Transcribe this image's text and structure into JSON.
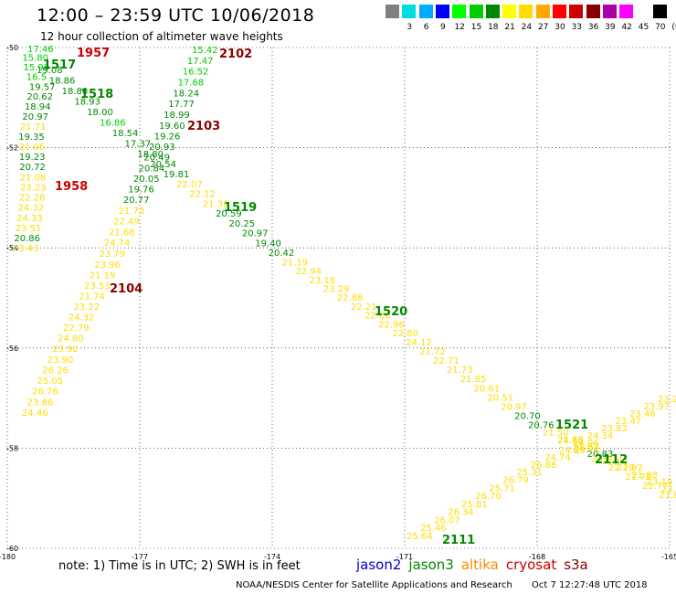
{
  "header": {
    "title": "12:00 – 23:59 UTC 10/06/2018",
    "subtitle": "12 hour collection of altimeter wave heights"
  },
  "legend": {
    "unit": "(ft)",
    "entries": [
      {
        "label": "",
        "color": "#808080"
      },
      {
        "label": "3",
        "color": "#00dddd"
      },
      {
        "label": "6",
        "color": "#00aaff"
      },
      {
        "label": "9",
        "color": "#0000ff"
      },
      {
        "label": "12",
        "color": "#00ff00"
      },
      {
        "label": "15",
        "color": "#00cc00"
      },
      {
        "label": "18",
        "color": "#008800"
      },
      {
        "label": "21",
        "color": "#ffff00"
      },
      {
        "label": "24",
        "color": "#ffdd00"
      },
      {
        "label": "27",
        "color": "#ffaa00"
      },
      {
        "label": "30",
        "color": "#ff0000"
      },
      {
        "label": "33",
        "color": "#cc0000"
      },
      {
        "label": "36",
        "color": "#880000"
      },
      {
        "label": "39",
        "color": "#aa00aa"
      },
      {
        "label": "42",
        "color": "#ff00ff"
      },
      {
        "label": "45",
        "color": "#ffffff"
      },
      {
        "label": "70",
        "color": "#000000"
      }
    ]
  },
  "map": {
    "lon_range": [
      -180,
      -165
    ],
    "lat_range": [
      -60,
      -50
    ],
    "lon_ticks": [
      "-180",
      "-177",
      "-174",
      "-171",
      "-168",
      "-165"
    ],
    "lat_ticks": [
      "-50",
      "-52",
      "-54",
      "-56",
      "-58",
      "-60"
    ]
  },
  "time_labels": [
    {
      "text": "1957",
      "color": "#cc0000"
    },
    {
      "text": "2102",
      "color": "#880000"
    },
    {
      "text": "1517",
      "color": "#008800"
    },
    {
      "text": "1518",
      "color": "#008800"
    },
    {
      "text": "2103",
      "color": "#880000"
    },
    {
      "text": "1958",
      "color": "#cc0000"
    },
    {
      "text": "1519",
      "color": "#008800"
    },
    {
      "text": "2104",
      "color": "#880000"
    },
    {
      "text": "1520",
      "color": "#008800"
    },
    {
      "text": "1521",
      "color": "#008800"
    },
    {
      "text": "2112",
      "color": "#008800"
    },
    {
      "text": "2111",
      "color": "#008800"
    }
  ],
  "tracks": [
    {
      "name": "track-a",
      "values": [
        {
          "v": "17.46",
          "c": "#00cc00"
        },
        {
          "v": "15.80",
          "c": "#00cc00"
        },
        {
          "v": "15.90",
          "c": "#00cc00"
        },
        {
          "v": "16.5",
          "c": "#00cc00"
        },
        {
          "v": "19.57",
          "c": "#008800"
        },
        {
          "v": "20.62",
          "c": "#008800"
        },
        {
          "v": "18.94",
          "c": "#008800"
        },
        {
          "v": "20.97",
          "c": "#008800"
        },
        {
          "v": "21.71",
          "c": "#ffdd00"
        },
        {
          "v": "19.35",
          "c": "#008800"
        },
        {
          "v": "21.06",
          "c": "#ffdd00"
        },
        {
          "v": "19.23",
          "c": "#008800"
        },
        {
          "v": "20.72",
          "c": "#008800"
        },
        {
          "v": "21.08",
          "c": "#ffdd00"
        },
        {
          "v": "23.23",
          "c": "#ffdd00"
        },
        {
          "v": "22.28",
          "c": "#ffdd00"
        },
        {
          "v": "24.32",
          "c": "#ffdd00"
        },
        {
          "v": "24.33",
          "c": "#ffdd00"
        },
        {
          "v": "23.51",
          "c": "#ffdd00"
        },
        {
          "v": "20.86",
          "c": "#008800"
        },
        {
          "v": "23.43",
          "c": "#ffdd00"
        }
      ]
    },
    {
      "name": "track-b",
      "values": [
        {
          "v": "15.42",
          "c": "#00cc00"
        },
        {
          "v": "17.47",
          "c": "#00cc00"
        },
        {
          "v": "16.52",
          "c": "#00cc00"
        },
        {
          "v": "17.68",
          "c": "#00cc00"
        },
        {
          "v": "18.24",
          "c": "#008800"
        },
        {
          "v": "17.77",
          "c": "#008800"
        },
        {
          "v": "18.99",
          "c": "#008800"
        },
        {
          "v": "19.60",
          "c": "#008800"
        },
        {
          "v": "19.26",
          "c": "#008800"
        },
        {
          "v": "20.93",
          "c": "#008800"
        },
        {
          "v": "20.49",
          "c": "#008800"
        },
        {
          "v": "20.84",
          "c": "#008800"
        },
        {
          "v": "20.05",
          "c": "#008800"
        },
        {
          "v": "19.76",
          "c": "#008800"
        },
        {
          "v": "20.77",
          "c": "#008800"
        },
        {
          "v": "21.73",
          "c": "#ffdd00"
        },
        {
          "v": "22.49",
          "c": "#ffdd00"
        },
        {
          "v": "21.68",
          "c": "#ffdd00"
        },
        {
          "v": "24.74",
          "c": "#ffdd00"
        },
        {
          "v": "23.79",
          "c": "#ffdd00"
        },
        {
          "v": "23.96",
          "c": "#ffdd00"
        },
        {
          "v": "21.19",
          "c": "#ffdd00"
        },
        {
          "v": "23.53",
          "c": "#ffdd00"
        },
        {
          "v": "21.74",
          "c": "#ffdd00"
        },
        {
          "v": "23.22",
          "c": "#ffdd00"
        },
        {
          "v": "24.32",
          "c": "#ffdd00"
        },
        {
          "v": "22.79",
          "c": "#ffdd00"
        },
        {
          "v": "24.80",
          "c": "#ffdd00"
        },
        {
          "v": "23.92",
          "c": "#ffdd00"
        },
        {
          "v": "23.90",
          "c": "#ffdd00"
        },
        {
          "v": "26.26",
          "c": "#ffdd00"
        },
        {
          "v": "25.05",
          "c": "#ffdd00"
        },
        {
          "v": "26.76",
          "c": "#ffdd00"
        },
        {
          "v": "23.86",
          "c": "#ffdd00"
        },
        {
          "v": "24.46",
          "c": "#ffdd00"
        }
      ]
    },
    {
      "name": "track-c",
      "values": [
        {
          "v": "19.08",
          "c": "#008800"
        },
        {
          "v": "18.86",
          "c": "#008800"
        },
        {
          "v": "18.80",
          "c": "#008800"
        },
        {
          "v": "18.93",
          "c": "#008800"
        },
        {
          "v": "18.00",
          "c": "#008800"
        },
        {
          "v": "16.86",
          "c": "#00cc00"
        },
        {
          "v": "18.54",
          "c": "#008800"
        },
        {
          "v": "17.37",
          "c": "#008800"
        },
        {
          "v": "18.80",
          "c": "#008800"
        },
        {
          "v": "20.54",
          "c": "#008800"
        },
        {
          "v": "19.81",
          "c": "#008800"
        },
        {
          "v": "22.07",
          "c": "#ffdd00"
        },
        {
          "v": "22.12",
          "c": "#ffdd00"
        },
        {
          "v": "21.39",
          "c": "#ffdd00"
        },
        {
          "v": "20.59",
          "c": "#008800"
        },
        {
          "v": "20.25",
          "c": "#008800"
        },
        {
          "v": "20.97",
          "c": "#008800"
        },
        {
          "v": "19.40",
          "c": "#008800"
        },
        {
          "v": "20.42",
          "c": "#008800"
        },
        {
          "v": "21.19",
          "c": "#ffdd00"
        },
        {
          "v": "22.94",
          "c": "#ffdd00"
        },
        {
          "v": "23.18",
          "c": "#ffdd00"
        },
        {
          "v": "23.29",
          "c": "#ffdd00"
        },
        {
          "v": "22.88",
          "c": "#ffdd00"
        },
        {
          "v": "22.21",
          "c": "#ffdd00"
        },
        {
          "v": "22.08",
          "c": "#ffdd00"
        },
        {
          "v": "22.96",
          "c": "#ffdd00"
        },
        {
          "v": "22.80",
          "c": "#ffdd00"
        },
        {
          "v": "24.12",
          "c": "#ffdd00"
        },
        {
          "v": "21.72",
          "c": "#ffdd00"
        },
        {
          "v": "22.71",
          "c": "#ffdd00"
        },
        {
          "v": "21.73",
          "c": "#ffdd00"
        },
        {
          "v": "21.85",
          "c": "#ffdd00"
        },
        {
          "v": "20.61",
          "c": "#ffdd00"
        },
        {
          "v": "20.51",
          "c": "#ffdd00"
        },
        {
          "v": "20.97",
          "c": "#ffdd00"
        },
        {
          "v": "20.70",
          "c": "#008800"
        },
        {
          "v": "20.76",
          "c": "#008800"
        },
        {
          "v": "21.50",
          "c": "#ffdd00"
        },
        {
          "v": "21.68",
          "c": "#ffdd00"
        },
        {
          "v": "21.82",
          "c": "#ffdd00"
        },
        {
          "v": "20.83",
          "c": "#008800"
        },
        {
          "v": "21.82",
          "c": "#ffdd00"
        },
        {
          "v": "21.92",
          "c": "#ffdd00"
        },
        {
          "v": "21.88",
          "c": "#ffdd00"
        },
        {
          "v": "23.19",
          "c": "#ffdd00"
        },
        {
          "v": "23.70",
          "c": "#ffdd00"
        },
        {
          "v": "24.80",
          "c": "#ffdd00"
        }
      ]
    },
    {
      "name": "track-d",
      "values": [
        {
          "v": "25.64",
          "c": "#ffdd00"
        },
        {
          "v": "25.46",
          "c": "#ffdd00"
        },
        {
          "v": "26.07",
          "c": "#ffdd00"
        },
        {
          "v": "26.34",
          "c": "#ffdd00"
        },
        {
          "v": "25.81",
          "c": "#ffdd00"
        },
        {
          "v": "26.70",
          "c": "#ffdd00"
        },
        {
          "v": "25.71",
          "c": "#ffdd00"
        },
        {
          "v": "26.79",
          "c": "#ffdd00"
        },
        {
          "v": "25.31",
          "c": "#ffdd00"
        },
        {
          "v": "26.88",
          "c": "#ffdd00"
        },
        {
          "v": "24.74",
          "c": "#ffdd00"
        },
        {
          "v": "24.85",
          "c": "#ffdd00"
        },
        {
          "v": "24.96",
          "c": "#ffdd00"
        },
        {
          "v": "24.34",
          "c": "#ffdd00"
        },
        {
          "v": "23.83",
          "c": "#ffdd00"
        },
        {
          "v": "23.47",
          "c": "#ffdd00"
        },
        {
          "v": "23.46",
          "c": "#ffdd00"
        },
        {
          "v": "23.97",
          "c": "#ffdd00"
        },
        {
          "v": "23.23",
          "c": "#ffdd00"
        }
      ]
    },
    {
      "name": "track-e",
      "values": [
        {
          "v": "24.75",
          "c": "#ffdd00"
        },
        {
          "v": "24.71",
          "c": "#ffdd00"
        },
        {
          "v": "23.77",
          "c": "#ffdd00"
        },
        {
          "v": "22.29",
          "c": "#ffdd00"
        },
        {
          "v": "21.72",
          "c": "#ffdd00"
        },
        {
          "v": "22.77",
          "c": "#ffdd00"
        },
        {
          "v": "21.81",
          "c": "#ffdd00"
        },
        {
          "v": "20",
          "c": "#008800"
        }
      ]
    }
  ],
  "notes": {
    "note_text": "note: 1) Time is in UTC; 2) SWH is in feet",
    "satellites": [
      {
        "name": "jason2",
        "color": "#0000cc"
      },
      {
        "name": "jason3",
        "color": "#008800"
      },
      {
        "name": "altika",
        "color": "#ff8800"
      },
      {
        "name": "cryosat",
        "color": "#cc0000"
      },
      {
        "name": "s3a",
        "color": "#880000"
      }
    ]
  },
  "footer": {
    "credit": "NOAA/NESDIS Center for Satellite Applications and Research",
    "timestamp": "Oct  7 12:27:48 UTC 2018"
  }
}
